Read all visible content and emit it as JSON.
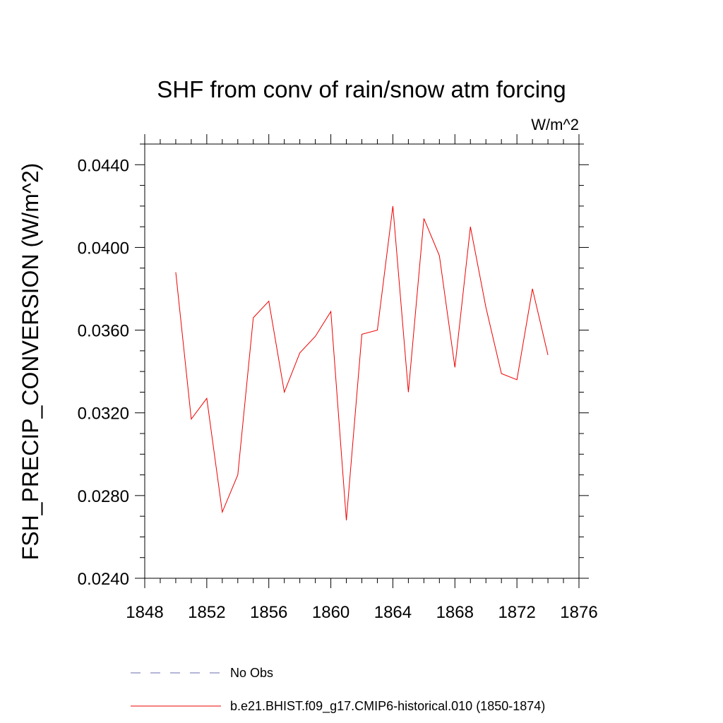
{
  "chart_data": {
    "type": "line",
    "title": "SHF from conv of rain/snow atm forcing",
    "units_label": "W/m^2",
    "xlabel": "",
    "ylabel": "FSH_PRECIP_CONVERSION  (W/m^2)",
    "xlim": [
      1848,
      1876
    ],
    "ylim": [
      0.024,
      0.045
    ],
    "x_ticks": [
      1848,
      1852,
      1856,
      1860,
      1864,
      1868,
      1872,
      1876
    ],
    "x_tick_labels": [
      "1848",
      "1852",
      "1856",
      "1860",
      "1864",
      "1868",
      "1872",
      "1876"
    ],
    "y_ticks": [
      0.024,
      0.028,
      0.032,
      0.036,
      0.04,
      0.044
    ],
    "y_tick_labels": [
      "0.0240",
      "0.0280",
      "0.0320",
      "0.0360",
      "0.0400",
      "0.0440"
    ],
    "grid": false,
    "legend_position": "bottom",
    "series": [
      {
        "name": "No Obs",
        "color": "#6a6ab0",
        "style": "dashed",
        "x": [],
        "values": []
      },
      {
        "name": "b.e21.BHIST.f09_g17.CMIP6-historical.010 (1850-1874)",
        "color": "#ee0000",
        "style": "solid",
        "x": [
          1850,
          1851,
          1852,
          1853,
          1854,
          1855,
          1856,
          1857,
          1858,
          1859,
          1860,
          1861,
          1862,
          1863,
          1864,
          1865,
          1866,
          1867,
          1868,
          1869,
          1870,
          1871,
          1872,
          1873,
          1874
        ],
        "values": [
          0.0388,
          0.0317,
          0.0327,
          0.0272,
          0.029,
          0.0366,
          0.0374,
          0.033,
          0.0349,
          0.0357,
          0.0369,
          0.0268,
          0.0358,
          0.036,
          0.042,
          0.033,
          0.0414,
          0.0396,
          0.0342,
          0.041,
          0.0371,
          0.0339,
          0.0336,
          0.038,
          0.0348
        ]
      }
    ]
  }
}
